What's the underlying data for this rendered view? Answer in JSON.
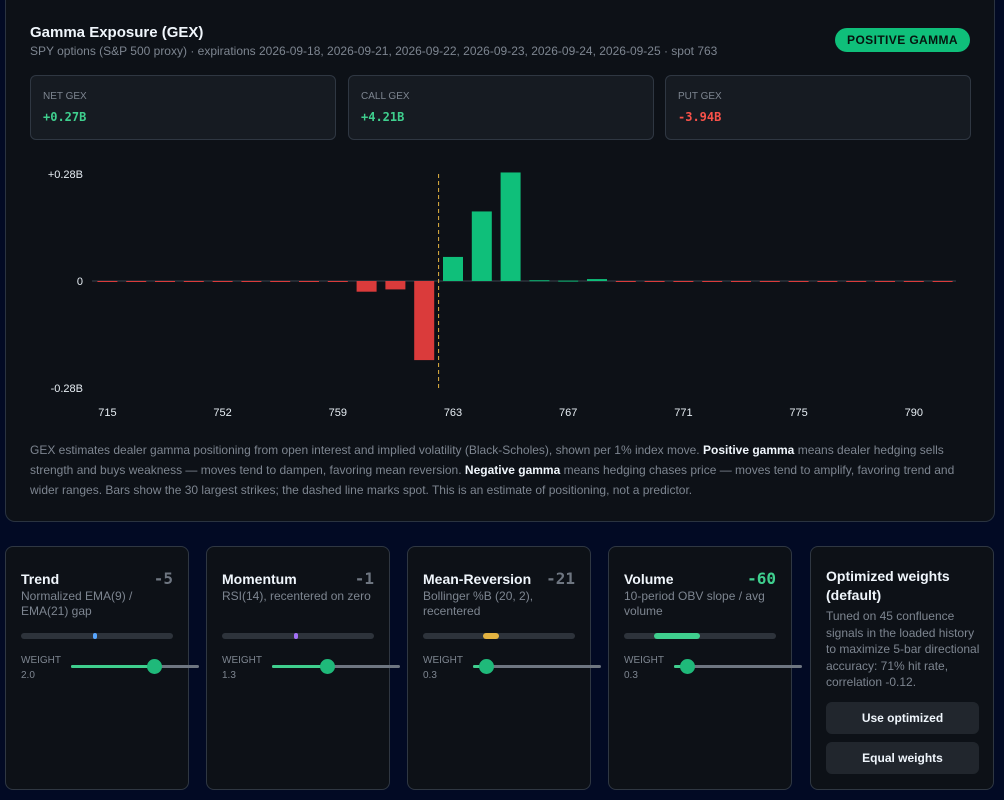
{
  "gex": {
    "title": "Gamma Exposure (GEX)",
    "subtitle": "SPY options (S&P 500 proxy) · expirations 2026-09-18, 2026-09-21, 2026-09-22, 2026-09-23, 2026-09-24, 2026-09-25 · spot 763",
    "badge": "POSITIVE GAMMA",
    "stats": [
      {
        "label": "NET GEX",
        "value": "+0.27B",
        "tone": "pos"
      },
      {
        "label": "CALL GEX",
        "value": "+4.21B",
        "tone": "pos"
      },
      {
        "label": "PUT GEX",
        "value": "-3.94B",
        "tone": "neg"
      }
    ],
    "description": {
      "p1": "GEX estimates dealer gamma positioning from open interest and implied volatility (Black-Scholes), shown per 1% index move. ",
      "b1": "Positive gamma",
      "p2": " means dealer hedging sells strength and buys weakness — moves tend to dampen, favoring mean reversion. ",
      "b2": "Negative gamma",
      "p3": " means hedging chases price — moves tend to amplify, favoring trend and wider ranges. Bars show the 30 largest strikes; the dashed line marks spot. This is an estimate of positioning, not a predictor."
    }
  },
  "chart_data": {
    "type": "bar",
    "title": "",
    "xlabel": "",
    "ylabel": "",
    "y_tick_labels": [
      "+0.28B",
      "0",
      "-0.28B"
    ],
    "ylim": [
      -0.28,
      0.28
    ],
    "x_tick_labels": [
      "715",
      "752",
      "759",
      "763",
      "767",
      "771",
      "775",
      "790"
    ],
    "x_tick_positions": [
      0,
      4,
      8,
      12,
      16,
      20,
      24,
      28
    ],
    "spot_index": 11.5,
    "positive_color": "#0fbf7a",
    "negative_color": "#da3b3b",
    "values": [
      -0.002,
      -0.002,
      -0.002,
      -0.002,
      -0.002,
      -0.002,
      -0.002,
      -0.002,
      -0.002,
      -0.028,
      -0.022,
      -0.207,
      0.063,
      0.182,
      0.284,
      0.002,
      0.001,
      0.005,
      -0.002,
      -0.002,
      -0.002,
      -0.002,
      -0.002,
      -0.002,
      -0.002,
      -0.002,
      -0.002,
      -0.002,
      -0.002,
      -0.002
    ],
    "grid": false,
    "legend": "none"
  },
  "factors": [
    {
      "name": "Trend",
      "score": "-5",
      "desc": "Normalized EMA(9) / EMA(21) gap",
      "signal": -0.05,
      "meter_color": "#58a6ff",
      "weight_label": "WEIGHT",
      "weight": "2.0",
      "weight_frac": 0.65
    },
    {
      "name": "Momentum",
      "score": "-1",
      "desc": "RSI(14), recentered on zero",
      "signal": -0.01,
      "meter_color": "#a371f7",
      "weight_label": "WEIGHT",
      "weight": "1.3",
      "weight_frac": 0.43
    },
    {
      "name": "Mean-Reversion",
      "score": "-21",
      "desc": "Bollinger %B (20, 2), recentered",
      "signal": -0.21,
      "meter_color": "#e3b341",
      "weight_label": "WEIGHT",
      "weight": "0.3",
      "weight_frac": 0.1
    },
    {
      "name": "Volume",
      "score": "-60",
      "desc": "10-period OBV slope / avg volume",
      "signal": -0.6,
      "meter_color": "#3fcf8e",
      "weight_label": "WEIGHT",
      "weight": "0.3",
      "weight_frac": 0.1,
      "strong": true
    }
  ],
  "optimized": {
    "title": "Optimized weights (default)",
    "desc": "Tuned on 45 confluence signals in the loaded history to maximize 5-bar directional accuracy: 71% hit rate, correlation -0.12.",
    "use_label": "Use optimized",
    "equal_label": "Equal weights"
  }
}
